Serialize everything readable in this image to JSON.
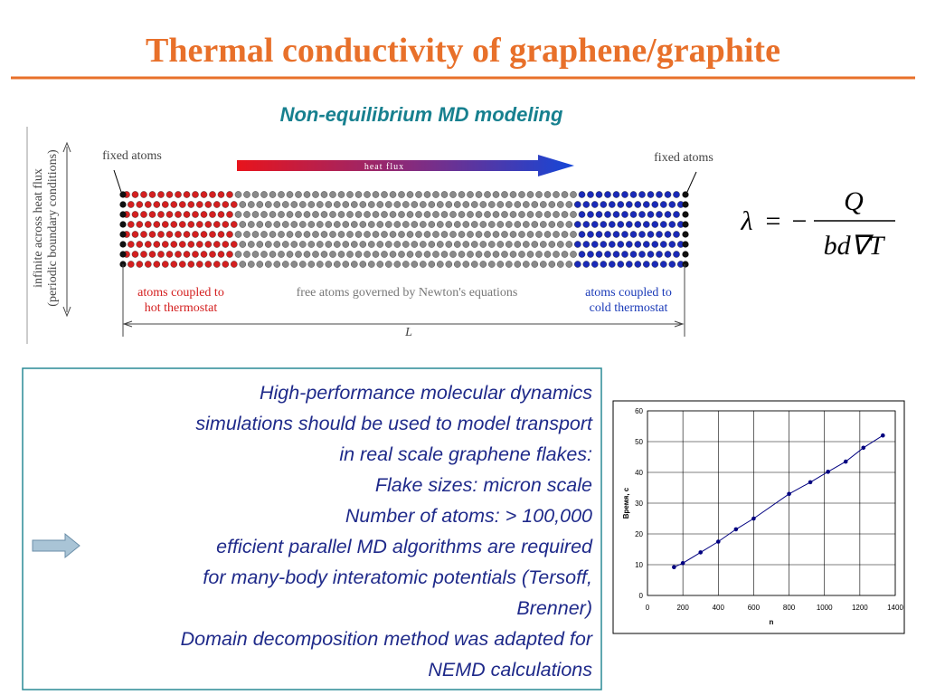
{
  "header": {
    "title": "Thermal conductivity of graphene/graphite"
  },
  "subtitle": "Non-equilibrium MD modeling",
  "diagram": {
    "fixed_left": "fixed atoms",
    "fixed_right": "fixed atoms",
    "heat_flux": "heat flux",
    "hot_label": [
      "atoms coupled to",
      "hot thermostat"
    ],
    "free_label": "free atoms governed by Newton's equations",
    "cold_label": [
      "atoms coupled to",
      "cold thermostat"
    ],
    "length": "L",
    "side_label": [
      "infinite across heat flux",
      "(periodic boundary conditions)"
    ]
  },
  "formula": {
    "lhs": "λ",
    "eq": "=",
    "minus": "−",
    "numerator": "Q",
    "denominator": "bd∇T"
  },
  "text_box": {
    "lines": [
      "High-performance molecular dynamics",
      "simulations should be used to model transport",
      "in real scale graphene flakes:",
      "Flake sizes: micron scale",
      "Number of atoms: > 100,000",
      "efficient parallel MD algorithms are required",
      "for many-body interatomic potentials (Tersoff,",
      "Brenner)",
      "Domain decomposition method was adapted for",
      "NEMD calculations"
    ]
  },
  "chart_data": {
    "type": "line",
    "x_label": "n",
    "y_label": "Время, с",
    "x": [
      150,
      200,
      300,
      400,
      500,
      600,
      800,
      920,
      1020,
      1120,
      1220,
      1330
    ],
    "series": [
      {
        "color": "#000080",
        "values": [
          9.2,
          10.5,
          14,
          17.5,
          21.5,
          25,
          33,
          36.8,
          40.2,
          43.5,
          48,
          52
        ]
      }
    ],
    "xlim": [
      0,
      1400
    ],
    "xticks": [
      0,
      200,
      400,
      600,
      800,
      1000,
      1200,
      1400
    ],
    "ylim": [
      0,
      60
    ],
    "yticks": [
      0,
      10,
      20,
      30,
      40,
      50,
      60
    ],
    "grid": true
  }
}
